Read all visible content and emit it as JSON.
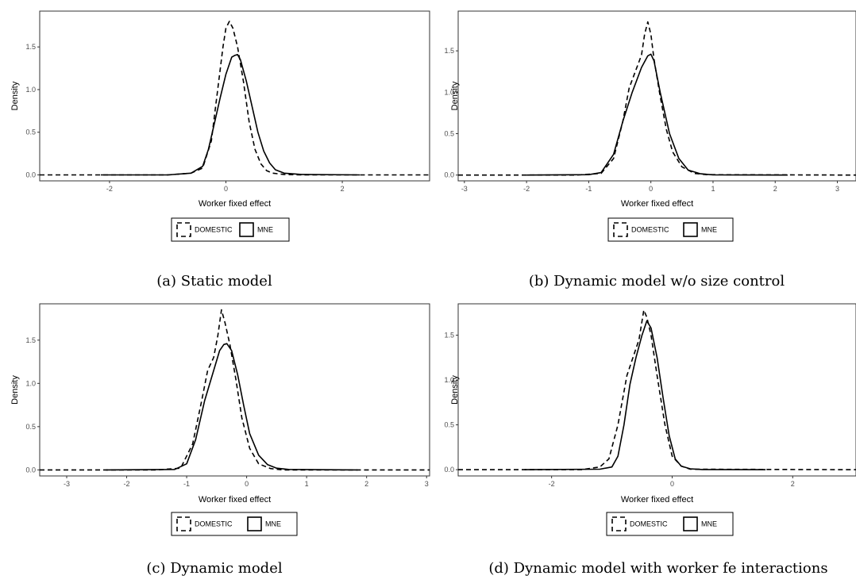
{
  "panels": [
    {
      "caption": "(a) Static model",
      "legend": [
        "DOMESTIC",
        "MNE"
      ],
      "chart": {
        "type": "line",
        "xlabel": "Worker fixed effect",
        "ylabel": "Density",
        "xlim": [
          -3.2,
          3.5
        ],
        "ylim": [
          -0.07,
          1.92
        ],
        "xticks": [
          -2,
          0,
          2
        ],
        "xtick_labels": [
          "-2",
          "0",
          "2"
        ],
        "yticks": [
          0,
          0.5,
          1,
          1.5
        ],
        "ytick_labels": [
          "0.0",
          "0.5",
          "1.0",
          "1.5"
        ],
        "grid": false,
        "series": [
          {
            "name": "DOMESTIC",
            "dash": "dashed",
            "x": [
              -3.2,
              -1.0,
              -0.6,
              -0.4,
              -0.25,
              -0.15,
              -0.05,
              0.0,
              0.06,
              0.12,
              0.2,
              0.3,
              0.4,
              0.5,
              0.6,
              0.7,
              0.8,
              1.0,
              1.3,
              3.5
            ],
            "y": [
              0,
              0,
              0.02,
              0.08,
              0.4,
              0.95,
              1.5,
              1.72,
              1.8,
              1.72,
              1.5,
              1.1,
              0.62,
              0.3,
              0.13,
              0.05,
              0.02,
              0.005,
              0,
              0
            ]
          },
          {
            "name": "MNE",
            "dash": "solid",
            "x": [
              -2.15,
              -1.0,
              -0.6,
              -0.4,
              -0.3,
              -0.2,
              -0.1,
              0.0,
              0.1,
              0.15,
              0.2,
              0.25,
              0.35,
              0.45,
              0.55,
              0.65,
              0.75,
              0.85,
              1.0,
              1.3,
              2.3
            ],
            "y": [
              0,
              0,
              0.02,
              0.1,
              0.3,
              0.6,
              0.9,
              1.18,
              1.38,
              1.4,
              1.41,
              1.35,
              1.1,
              0.8,
              0.5,
              0.28,
              0.14,
              0.06,
              0.02,
              0.005,
              0
            ]
          }
        ]
      }
    },
    {
      "caption": "(b) Dynamic model w/o size control",
      "legend": [
        "DOMESTIC",
        "MNE"
      ],
      "chart": {
        "type": "line",
        "xlabel": "Worker fixed effect",
        "ylabel": "Density",
        "xlim": [
          -3.1,
          3.3
        ],
        "ylim": [
          -0.07,
          1.98
        ],
        "xticks": [
          -3,
          -2,
          -1,
          0,
          1,
          2,
          3
        ],
        "xtick_labels": [
          "-3",
          "-2",
          "-1",
          "0",
          "1",
          "2",
          "3"
        ],
        "yticks": [
          0,
          0.5,
          1,
          1.5
        ],
        "ytick_labels": [
          "0.0",
          "0.5",
          "1.0",
          "1.5"
        ],
        "grid": false,
        "series": [
          {
            "name": "DOMESTIC",
            "dash": "dashed",
            "x": [
              -3.1,
              -1.2,
              -0.8,
              -0.6,
              -0.45,
              -0.35,
              -0.25,
              -0.15,
              -0.1,
              -0.05,
              0.0,
              0.05,
              0.15,
              0.25,
              0.35,
              0.5,
              0.7,
              0.9,
              3.3
            ],
            "y": [
              0,
              0,
              0.02,
              0.2,
              0.65,
              1.05,
              1.25,
              1.45,
              1.7,
              1.85,
              1.7,
              1.4,
              0.95,
              0.55,
              0.28,
              0.1,
              0.02,
              0.005,
              0
            ]
          },
          {
            "name": "MNE",
            "dash": "solid",
            "x": [
              -2.0,
              -1.0,
              -0.8,
              -0.6,
              -0.45,
              -0.3,
              -0.15,
              -0.05,
              0.0,
              0.05,
              0.15,
              0.3,
              0.45,
              0.6,
              0.8,
              1.0,
              2.2
            ],
            "y": [
              0,
              0.005,
              0.03,
              0.25,
              0.65,
              1.0,
              1.3,
              1.44,
              1.46,
              1.38,
              1.0,
              0.5,
              0.2,
              0.06,
              0.015,
              0.003,
              0
            ]
          }
        ]
      }
    },
    {
      "caption": "(c) Dynamic model",
      "legend": [
        "DOMESTIC",
        "MNE"
      ],
      "chart": {
        "type": "line",
        "xlabel": "Worker fixed effect",
        "ylabel": "Density",
        "xlim": [
          -3.45,
          3.05
        ],
        "ylim": [
          -0.07,
          1.92
        ],
        "xticks": [
          -3,
          -2,
          -1,
          0,
          1,
          2,
          3
        ],
        "xtick_labels": [
          "-3",
          "-2",
          "-1",
          "0",
          "1",
          "2",
          "3"
        ],
        "yticks": [
          0,
          0.5,
          1,
          1.5
        ],
        "ytick_labels": [
          "0.0",
          "0.5",
          "1.0",
          "1.5"
        ],
        "grid": false,
        "series": [
          {
            "name": "DOMESTIC",
            "dash": "dashed",
            "x": [
              -3.45,
              -1.5,
              -1.1,
              -0.9,
              -0.75,
              -0.65,
              -0.55,
              -0.48,
              -0.42,
              -0.36,
              -0.28,
              -0.18,
              -0.08,
              0.05,
              0.2,
              0.4,
              0.6,
              3.05
            ],
            "y": [
              0,
              0,
              0.02,
              0.3,
              0.8,
              1.15,
              1.3,
              1.55,
              1.85,
              1.7,
              1.45,
              1.05,
              0.6,
              0.25,
              0.07,
              0.015,
              0,
              0
            ]
          },
          {
            "name": "MNE",
            "dash": "solid",
            "x": [
              -2.35,
              -1.2,
              -1.0,
              -0.85,
              -0.7,
              -0.55,
              -0.45,
              -0.38,
              -0.33,
              -0.25,
              -0.15,
              -0.05,
              0.05,
              0.2,
              0.35,
              0.5,
              0.7,
              1.85
            ],
            "y": [
              0,
              0.005,
              0.07,
              0.35,
              0.8,
              1.15,
              1.38,
              1.45,
              1.46,
              1.38,
              1.1,
              0.75,
              0.42,
              0.17,
              0.06,
              0.02,
              0.005,
              0
            ]
          }
        ]
      }
    },
    {
      "caption": "(d) Dynamic model with worker fe interactions",
      "legend": [
        "DOMESTIC",
        "MNE"
      ],
      "chart": {
        "type": "line",
        "xlabel": "Worker fixed effect",
        "ylabel": "Density",
        "xlim": [
          -3.55,
          3.05
        ],
        "ylim": [
          -0.07,
          1.85
        ],
        "xticks": [
          -2,
          0,
          2
        ],
        "xtick_labels": [
          "-2",
          "0",
          "2"
        ],
        "yticks": [
          0,
          0.5,
          1,
          1.5
        ],
        "ytick_labels": [
          "0.0",
          "0.5",
          "1.0",
          "1.5"
        ],
        "grid": false,
        "series": [
          {
            "name": "DOMESTIC",
            "dash": "dashed",
            "x": [
              -3.55,
              -1.5,
              -1.2,
              -1.05,
              -0.9,
              -0.75,
              -0.65,
              -0.55,
              -0.47,
              -0.42,
              -0.35,
              -0.25,
              -0.12,
              0.0,
              0.15,
              0.3,
              3.05
            ],
            "y": [
              0,
              0,
              0.03,
              0.12,
              0.5,
              1.05,
              1.25,
              1.45,
              1.78,
              1.7,
              1.5,
              1.05,
              0.5,
              0.15,
              0.04,
              0.005,
              0
            ]
          },
          {
            "name": "MNE",
            "dash": "solid",
            "x": [
              -2.45,
              -1.2,
              -1.0,
              -0.9,
              -0.8,
              -0.7,
              -0.6,
              -0.5,
              -0.42,
              -0.35,
              -0.25,
              -0.15,
              -0.05,
              0.05,
              0.15,
              0.3,
              0.5,
              1.55
            ],
            "y": [
              0,
              0.005,
              0.03,
              0.15,
              0.5,
              0.95,
              1.25,
              1.5,
              1.66,
              1.58,
              1.25,
              0.8,
              0.38,
              0.12,
              0.04,
              0.01,
              0.002,
              0
            ]
          }
        ]
      }
    }
  ]
}
